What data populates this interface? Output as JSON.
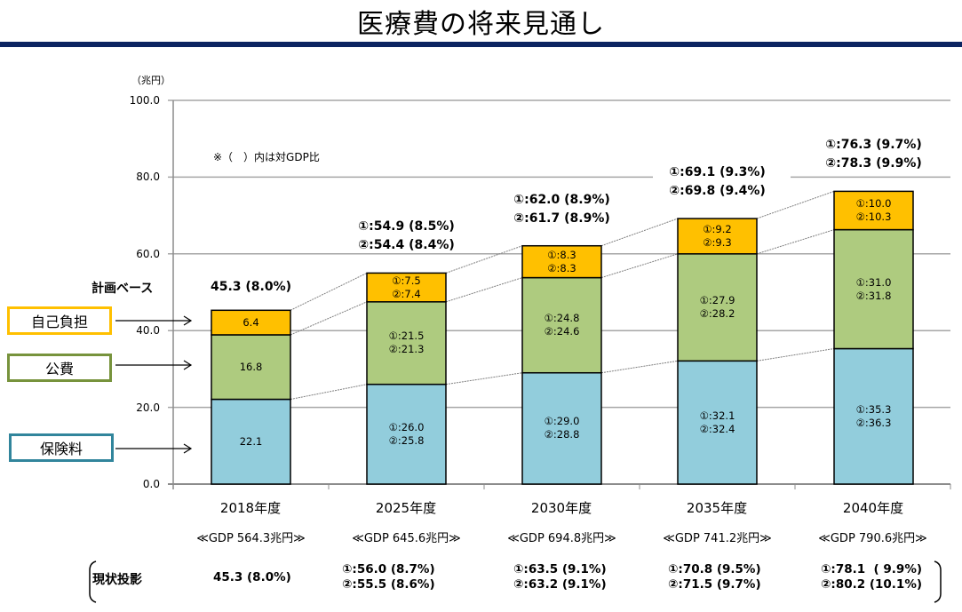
{
  "page": {
    "title": "医療費の将来見通し"
  },
  "chart_data": {
    "type": "bar",
    "stacked": true,
    "title": "医療費の将来見通し",
    "ylabel": "（兆円）",
    "ylim": [
      0,
      100
    ],
    "yticks": [
      "0.0",
      "20.0",
      "40.0",
      "60.0",
      "80.0",
      "100.0"
    ],
    "grid": true,
    "note": "※（　）内は対GDP比",
    "categories": [
      "2018年度",
      "2025年度",
      "2030年度",
      "2035年度",
      "2040年度"
    ],
    "gdp_labels": [
      "≪GDP 564.3兆円≫",
      "≪GDP 645.6兆円≫",
      "≪GDP 694.8兆円≫",
      "≪GDP 741.2兆円≫",
      "≪GDP 790.6兆円≫"
    ],
    "series": [
      {
        "name": "保険料",
        "color": "#92cddc",
        "values": [
          22.1,
          26.0,
          29.0,
          32.1,
          35.3
        ],
        "values_case2": [
          22.1,
          25.8,
          28.8,
          32.4,
          36.3
        ],
        "labels": [
          "22.1",
          "①:26.0\n②:25.8",
          "①:29.0\n②:28.8",
          "①:32.1\n②:32.4",
          "①:35.3\n②:36.3"
        ]
      },
      {
        "name": "公費",
        "color": "#aecb7f",
        "values": [
          16.8,
          21.5,
          24.8,
          27.9,
          31.0
        ],
        "values_case2": [
          16.8,
          21.3,
          24.6,
          28.2,
          31.8
        ],
        "labels": [
          "16.8",
          "①:21.5\n②:21.3",
          "①:24.8\n②:24.6",
          "①:27.9\n②:28.2",
          "①:31.0\n②:31.8"
        ]
      },
      {
        "name": "自己負担",
        "color": "#ffc000",
        "values": [
          6.4,
          7.5,
          8.3,
          9.2,
          10.0
        ],
        "values_case2": [
          6.4,
          7.4,
          8.3,
          9.3,
          10.3
        ],
        "labels": [
          "6.4",
          "①:7.5\n②:7.4",
          "①:8.3\n②:8.3",
          "①:9.2\n②:9.3",
          "①:10.0\n②:10.3"
        ]
      }
    ],
    "totals_plan": [
      {
        "line1": "45.3 (8.0%)",
        "line2": ""
      },
      {
        "line1": "①:54.9 (8.5%)",
        "line2": "②:54.4 (8.4%)"
      },
      {
        "line1": "①:62.0 (8.9%)",
        "line2": "②:61.7 (8.9%)"
      },
      {
        "line1": "①:69.1 (9.3%)",
        "line2": "②:69.8 (9.4%)"
      },
      {
        "line1": "①:76.3 (9.7%)",
        "line2": "②:78.3 (9.9%)"
      }
    ],
    "legend": [
      {
        "label": "自己負担",
        "border": "#ffc000"
      },
      {
        "label": "公費",
        "border": "#77933c"
      },
      {
        "label": "保険料",
        "border": "#31859c"
      }
    ],
    "plan_base_label": "計画ベース",
    "status_quo": {
      "label": "現状投影",
      "values": [
        "45.3 (8.0%)",
        "①:56.0 (8.7%)\n②:55.5 (8.6%)",
        "①:63.5 (9.1%)\n②:63.2 (9.1%)",
        "①:70.8 (9.5%)\n②:71.5 (9.7%)",
        "①:78.1  ( 9.9%)\n②:80.2 (10.1%)"
      ]
    }
  }
}
